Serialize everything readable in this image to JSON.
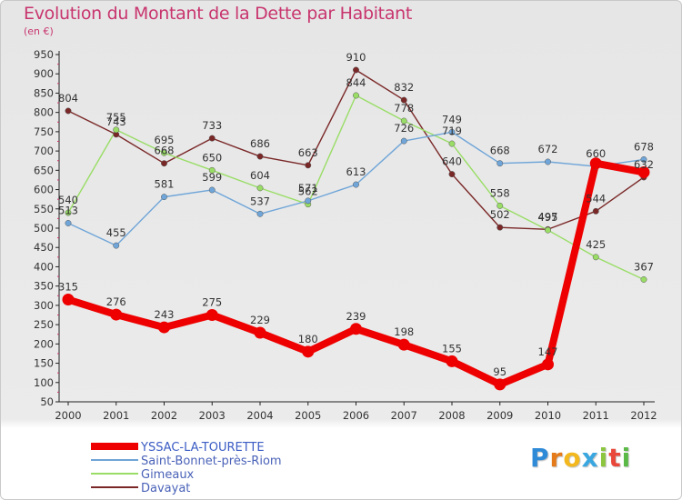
{
  "header": {
    "title": "Evolution du Montant de la Dette par Habitant",
    "subtitle": "(en €)"
  },
  "logo": {
    "letters": [
      "P",
      "r",
      "o",
      "x",
      "i",
      "t",
      "i"
    ],
    "colors": [
      "#2f8bd8",
      "#e57a1a",
      "#f2b81e",
      "#3aa7e0",
      "#8cc63f",
      "#e8473a",
      "#5bb947"
    ]
  },
  "chart_data": {
    "type": "line",
    "title": "Evolution du Montant de la Dette par Habitant",
    "subtitle": "(en €)",
    "x": [
      "2000",
      "2001",
      "2002",
      "2003",
      "2004",
      "2005",
      "2006",
      "2007",
      "2008",
      "2009",
      "2010",
      "2011",
      "2012"
    ],
    "ylim": [
      50,
      950
    ],
    "yticks": [
      50,
      100,
      150,
      200,
      250,
      300,
      350,
      400,
      450,
      500,
      550,
      600,
      650,
      700,
      750,
      800,
      850,
      900,
      950
    ],
    "grid": false,
    "legend_position": "bottom-left",
    "series": [
      {
        "name": "YSSAC-LA-TOURETTE",
        "color": "#ee0000",
        "values": [
          315,
          276,
          243,
          275,
          229,
          180,
          239,
          198,
          155,
          95,
          147,
          668,
          645
        ],
        "labels": [
          "315",
          "276",
          "243",
          "275",
          "229",
          "180",
          "239",
          "198",
          "155",
          "95",
          "147",
          "",
          ""
        ]
      },
      {
        "name": "Saint-Bonnet-près-Riom",
        "color": "#6fa5d8",
        "values": [
          513,
          455,
          581,
          599,
          537,
          571,
          613,
          726,
          749,
          668,
          672,
          660,
          678
        ],
        "labels": [
          "513",
          "455",
          "581",
          "599",
          "537",
          "571",
          "613",
          "726",
          "749",
          "668",
          "672",
          "660",
          "678"
        ]
      },
      {
        "name": "Gimeaux",
        "color": "#99dd66",
        "values": [
          540,
          755,
          695,
          650,
          604,
          562,
          844,
          778,
          719,
          558,
          495,
          425,
          367
        ],
        "labels": [
          "540",
          "755",
          "695",
          "650",
          "604",
          "562",
          "844",
          "778",
          "719",
          "558",
          "495",
          "425",
          "367"
        ]
      },
      {
        "name": "Davayat",
        "color": "#7a2727",
        "values": [
          804,
          743,
          668,
          733,
          686,
          663,
          910,
          832,
          640,
          502,
          497,
          544,
          632
        ],
        "labels": [
          "804",
          "743",
          "668",
          "733",
          "686",
          "663",
          "910",
          "832",
          "640",
          "502",
          "497",
          "544",
          "632"
        ]
      }
    ]
  }
}
